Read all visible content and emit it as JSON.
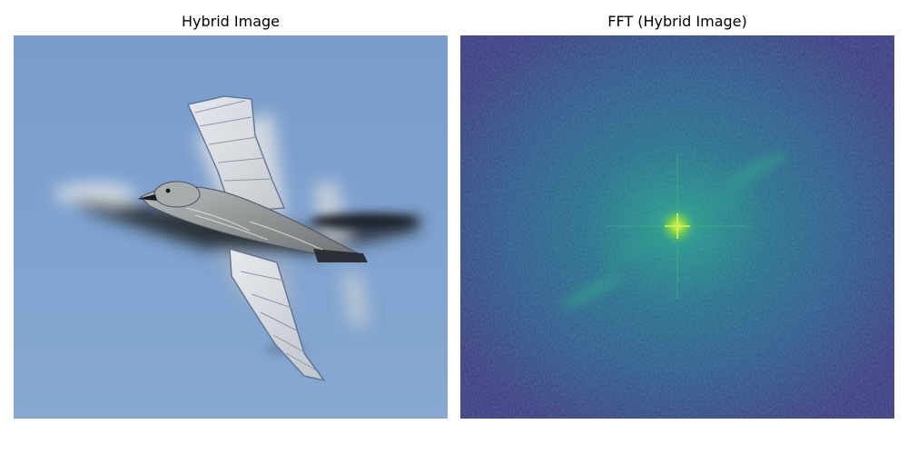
{
  "panels": [
    {
      "title": "Hybrid Image"
    },
    {
      "title": "FFT (Hybrid Image)"
    }
  ],
  "colors": {
    "sky": "#7c9fcc",
    "sky_light": "#8aaad4",
    "jet_shadow": "#2a2f38",
    "bird_body": "#9a9d9c",
    "bird_highlight": "#e2e4e6",
    "fft_base": "#3f3b86",
    "fft_mid": "#2a6f8c",
    "fft_peak": "#a6e43c"
  }
}
